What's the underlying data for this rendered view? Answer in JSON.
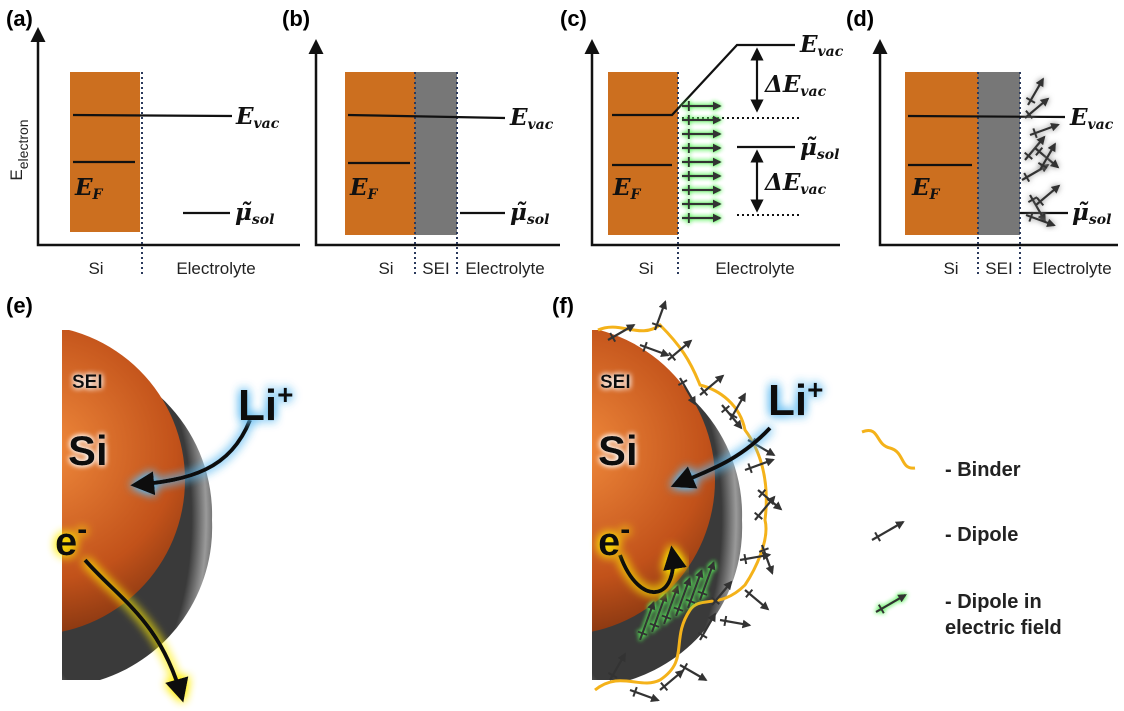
{
  "panels": [
    {
      "label": "(a)",
      "y_axis": {
        "base": "E",
        "sub": "electron"
      },
      "evac": {
        "base": "E",
        "sub": "vac"
      },
      "ef": {
        "base": "E",
        "sub": "F"
      },
      "mu": {
        "base": "μ̃",
        "sub": "sol"
      },
      "regions": [
        "Si",
        "Electrolyte"
      ]
    },
    {
      "label": "(b)",
      "evac": {
        "base": "E",
        "sub": "vac"
      },
      "ef": {
        "base": "E",
        "sub": "F"
      },
      "mu": {
        "base": "μ̃",
        "sub": "sol"
      },
      "regions": [
        "Si",
        "SEI",
        "Electrolyte"
      ]
    },
    {
      "label": "(c)",
      "evac": {
        "base": "E",
        "sub": "vac"
      },
      "delta_top": {
        "base": "ΔE",
        "sub": "vac"
      },
      "mu": {
        "base": "μ̃",
        "sub": "sol"
      },
      "delta_bottom": {
        "base": "ΔE",
        "sub": "vac"
      },
      "ef": {
        "base": "E",
        "sub": "F"
      },
      "regions": [
        "Si",
        "Electrolyte"
      ]
    },
    {
      "label": "(d)",
      "evac": {
        "base": "E",
        "sub": "vac"
      },
      "ef": {
        "base": "E",
        "sub": "F"
      },
      "mu": {
        "base": "μ̃",
        "sub": "sol"
      },
      "regions": [
        "Si",
        "SEI",
        "Electrolyte"
      ]
    },
    {
      "label": "(e)",
      "sei": "SEI",
      "si": "Si",
      "li": {
        "base": "Li",
        "sup": "+"
      },
      "electron": {
        "base": "e",
        "sup": "-"
      }
    },
    {
      "label": "(f)",
      "sei": "SEI",
      "si": "Si",
      "li": {
        "base": "Li",
        "sup": "+"
      },
      "electron": {
        "base": "e",
        "sup": "-"
      }
    }
  ],
  "legend": {
    "binder": "- Binder",
    "dipole": "- Dipole",
    "dipole_field": [
      "- Dipole in",
      "electric field"
    ]
  }
}
